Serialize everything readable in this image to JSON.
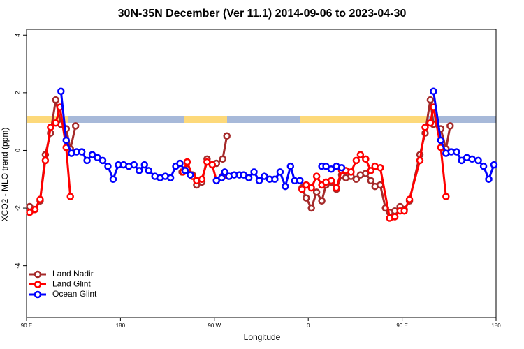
{
  "chart_data": {
    "type": "line",
    "title": "30N-35N December (Ver 11.1)   2014-09-06 to 2023-04-30",
    "x_label": "Longitude",
    "y_label": "XCO2 - MLO trend (ppm)",
    "xlim": [
      90,
      540
    ],
    "ylim": [
      -5.8,
      4.2
    ],
    "xticks": [
      {
        "value": 90,
        "label": "90 E"
      },
      180,
      {
        "value": 270,
        "label": "90 W"
      },
      {
        "value": 360,
        "label": "0"
      },
      {
        "value": 450,
        "label": "90 E"
      },
      {
        "value": 540,
        "label": "180"
      }
    ],
    "yticks": [
      -4,
      -2,
      0,
      2,
      4
    ],
    "legend": "bottom-left",
    "series": [
      {
        "name": "Land Nadir",
        "color": "#a52a2a",
        "x": [
          93,
          98,
          103,
          108,
          113,
          118,
          123,
          128,
          132,
          137,
          null,
          239,
          244,
          249,
          253,
          258,
          263,
          268,
          272,
          278,
          282,
          null,
          354,
          358,
          363,
          368,
          373,
          377,
          382,
          387,
          392,
          396,
          401,
          406,
          410,
          415,
          420,
          424,
          429,
          434,
          438,
          443,
          448,
          452,
          457,
          467,
          472,
          477,
          480,
          487,
          492,
          496
        ],
        "values": [
          -1.95,
          -2.05,
          -1.75,
          -0.15,
          0.6,
          1.75,
          0.9,
          0.75,
          0.05,
          0.85,
          null,
          -0.75,
          -0.65,
          -0.85,
          -1.2,
          -1.1,
          -0.3,
          -0.5,
          -0.45,
          -0.3,
          0.5,
          null,
          -1.3,
          -1.65,
          -2.0,
          -1.45,
          -1.75,
          -1.2,
          -1.1,
          -1.35,
          -0.85,
          -0.95,
          -0.9,
          -1.0,
          -0.85,
          -0.8,
          -1.05,
          -1.25,
          -1.2,
          -2.0,
          -2.15,
          -2.1,
          -1.95,
          -2.05,
          -1.75,
          -0.15,
          0.6,
          1.75,
          0.9,
          0.75,
          0.05,
          0.85
        ]
      },
      {
        "name": "Land Glint",
        "color": "#ff0000",
        "x": [
          93,
          98,
          103,
          108,
          113,
          118,
          122,
          128,
          132,
          null,
          240,
          244,
          249,
          253,
          258,
          263,
          268,
          272,
          278,
          null,
          354,
          358,
          363,
          368,
          373,
          377,
          382,
          387,
          392,
          396,
          401,
          406,
          410,
          415,
          420,
          424,
          429,
          438,
          443,
          448,
          452,
          457,
          467,
          472,
          477,
          480,
          487,
          492
        ],
        "values": [
          -2.15,
          -2.05,
          -1.7,
          -0.35,
          0.8,
          0.95,
          1.5,
          0.1,
          -1.6,
          null,
          -0.75,
          -0.4,
          -0.9,
          -1.05,
          -1.0,
          -0.4,
          -0.5,
          -1.05,
          -0.9,
          null,
          -1.35,
          -1.2,
          -1.3,
          -0.9,
          -1.2,
          -1.1,
          -1.05,
          -1.3,
          -0.7,
          -0.7,
          -0.75,
          -0.35,
          -0.15,
          -0.3,
          -0.7,
          -0.55,
          -0.6,
          -2.35,
          -2.3,
          -2.1,
          -2.1,
          -1.7,
          -0.35,
          0.8,
          0.95,
          1.5,
          0.1,
          -1.6
        ]
      },
      {
        "name": "Ocean Glint",
        "color": "#0000ff",
        "x": [
          123,
          128,
          133,
          138,
          143,
          148,
          153,
          158,
          163,
          168,
          173,
          178,
          183,
          188,
          193,
          198,
          203,
          207,
          213,
          218,
          223,
          228,
          233,
          237,
          242,
          247,
          null,
          272,
          277,
          280,
          284,
          289,
          294,
          298,
          303,
          308,
          313,
          318,
          323,
          328,
          333,
          338,
          343,
          347,
          352,
          null,
          373,
          377,
          382,
          387,
          392,
          null,
          480,
          487,
          492,
          497,
          502,
          507,
          512,
          517,
          523,
          528,
          533,
          538
        ],
        "values": [
          2.05,
          0.35,
          -0.1,
          -0.05,
          -0.05,
          -0.35,
          -0.15,
          -0.25,
          -0.35,
          -0.55,
          -1.0,
          -0.5,
          -0.5,
          -0.55,
          -0.5,
          -0.7,
          -0.5,
          -0.7,
          -0.9,
          -0.95,
          -0.9,
          -0.95,
          -0.55,
          -0.45,
          -0.7,
          -0.85,
          null,
          -1.05,
          -0.95,
          -0.75,
          -0.9,
          -0.85,
          -0.85,
          -0.85,
          -0.95,
          -0.75,
          -1.05,
          -0.9,
          -1.0,
          -1.0,
          -0.75,
          -1.25,
          -0.55,
          -1.05,
          -1.05,
          null,
          -0.55,
          -0.55,
          -0.65,
          -0.55,
          -0.6,
          null,
          2.05,
          0.35,
          -0.1,
          -0.05,
          -0.05,
          -0.35,
          -0.25,
          -0.3,
          -0.35,
          -0.55,
          -1.0,
          -0.5
        ]
      }
    ]
  }
}
